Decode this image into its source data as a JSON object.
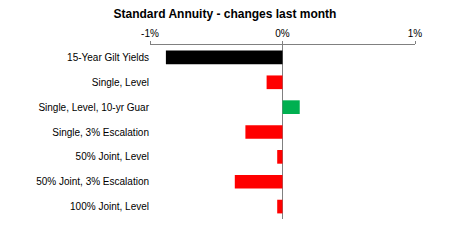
{
  "chart_data": {
    "type": "bar",
    "title": "Standard Annuity - changes last month",
    "orientation": "horizontal",
    "categories": [
      "15-Year Gilt Yields",
      "Single, Level",
      "Single, Level, 10-yr Guar",
      "Single, 3% Escalation",
      "50% Joint, Level",
      "50% Joint, 3% Escalation",
      "100% Joint, Level"
    ],
    "values": [
      -0.88,
      -0.12,
      0.13,
      -0.28,
      -0.04,
      -0.36,
      -0.04
    ],
    "colors": [
      "#000000",
      "#ff0000",
      "#00b050",
      "#ff0000",
      "#ff0000",
      "#ff0000",
      "#ff0000"
    ],
    "xlim": [
      -1,
      1
    ],
    "xticks": [
      {
        "value": -1,
        "label": "-1%"
      },
      {
        "value": 0,
        "label": "0%"
      },
      {
        "value": 1,
        "label": "1%"
      }
    ],
    "grid": false
  }
}
